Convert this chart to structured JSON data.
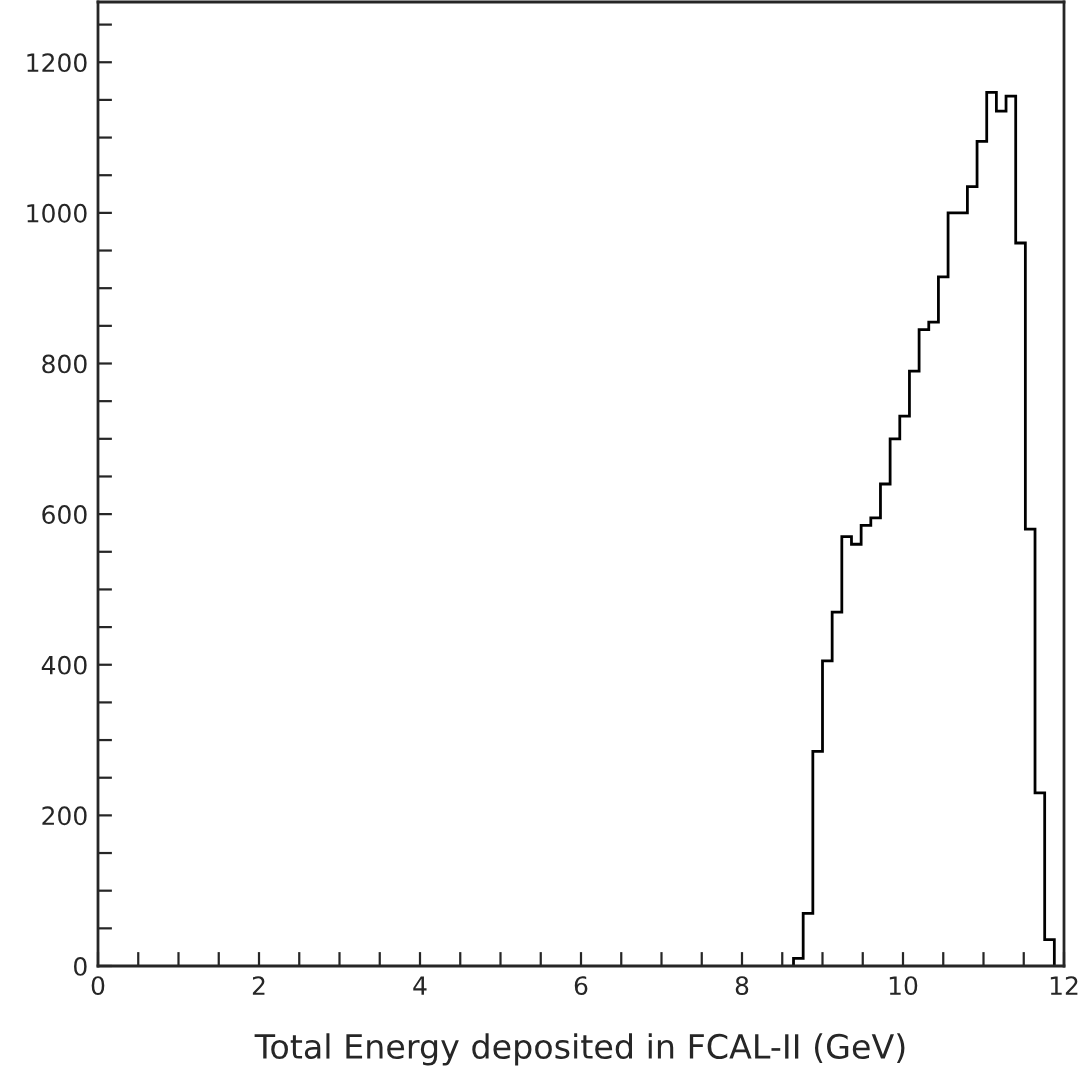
{
  "chart_data": {
    "type": "histogram",
    "xlabel": "Total Energy deposited in FCAL-II (GeV)",
    "bins": [
      8.64,
      8.76,
      8.88,
      9.0,
      9.12,
      9.24,
      9.36,
      9.48,
      9.6,
      9.72,
      9.84,
      9.96,
      10.08,
      10.2,
      10.32,
      10.44,
      10.56,
      10.68,
      10.8,
      10.92,
      11.04,
      11.16,
      11.28,
      11.4,
      11.52,
      11.64,
      11.76,
      11.88
    ],
    "values": [
      10,
      70,
      285,
      405,
      470,
      570,
      560,
      585,
      595,
      640,
      700,
      730,
      790,
      845,
      855,
      915,
      1000,
      1000,
      1035,
      1095,
      1160,
      1135,
      1155,
      960,
      580,
      230,
      35
    ],
    "color": "#000000",
    "xlim": [
      0,
      12
    ],
    "xticks": [
      0,
      {
        "value": 0.5,
        "label": null
      },
      {
        "value": 1,
        "label": null
      },
      {
        "value": 1.5,
        "label": null
      },
      2,
      {
        "value": 2.5,
        "label": null
      },
      {
        "value": 3,
        "label": null
      },
      {
        "value": 3.5,
        "label": null
      },
      4,
      {
        "value": 4.5,
        "label": null
      },
      {
        "value": 5,
        "label": null
      },
      {
        "value": 5.5,
        "label": null
      },
      6,
      {
        "value": 6.5,
        "label": null
      },
      {
        "value": 7,
        "label": null
      },
      {
        "value": 7.5,
        "label": null
      },
      8,
      {
        "value": 8.5,
        "label": null
      },
      {
        "value": 9,
        "label": null
      },
      {
        "value": 9.5,
        "label": null
      },
      10,
      {
        "value": 10.5,
        "label": null
      },
      {
        "value": 11,
        "label": null
      },
      {
        "value": 11.5,
        "label": null
      },
      12
    ],
    "ylim": [
      0,
      1280
    ],
    "yticks": [
      0,
      {
        "value": 50,
        "label": null
      },
      {
        "value": 100,
        "label": null
      },
      {
        "value": 150,
        "label": null
      },
      200,
      {
        "value": 250,
        "label": null
      },
      {
        "value": 300,
        "label": null
      },
      {
        "value": 350,
        "label": null
      },
      400,
      {
        "value": 450,
        "label": null
      },
      {
        "value": 500,
        "label": null
      },
      {
        "value": 550,
        "label": null
      },
      600,
      {
        "value": 650,
        "label": null
      },
      {
        "value": 700,
        "label": null
      },
      {
        "value": 750,
        "label": null
      },
      800,
      {
        "value": 850,
        "label": null
      },
      {
        "value": 900,
        "label": null
      },
      {
        "value": 950,
        "label": null
      },
      1000,
      {
        "value": 1050,
        "label": null
      },
      {
        "value": 1100,
        "label": null
      },
      {
        "value": 1150,
        "label": null
      },
      1200,
      {
        "value": 1250,
        "label": null
      }
    ],
    "grid": false
  }
}
